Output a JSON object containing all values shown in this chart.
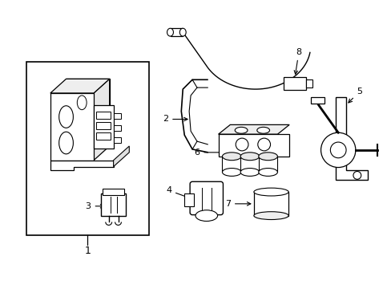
{
  "background_color": "#ffffff",
  "line_color": "#000000",
  "fig_width": 4.89,
  "fig_height": 3.6,
  "dpi": 100,
  "font_size": 8
}
